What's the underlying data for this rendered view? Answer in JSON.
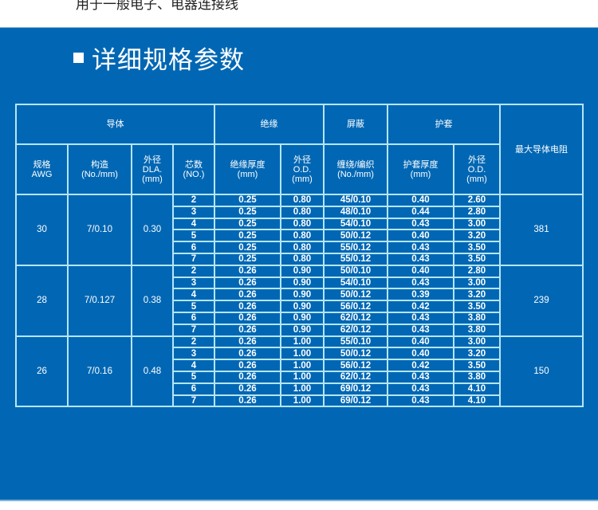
{
  "top_text": "用于一般电子、电器连接线",
  "section_title": "详细规格参数",
  "colors": {
    "panel_bg": "#0167b4",
    "grid": "#b4e6f7",
    "text": "#ffffff"
  },
  "table": {
    "group_headers": [
      "导体",
      "绝缘",
      "屏蔽",
      "护套",
      "最大导体电阻"
    ],
    "sub_headers": [
      [
        "规格",
        "AWG"
      ],
      [
        "构造",
        "(No./mm)"
      ],
      [
        "外径",
        "DLA.",
        "(mm)"
      ],
      [
        "芯数",
        "(NO.)"
      ],
      [
        "绝缘厚度",
        "(mm)"
      ],
      [
        "外径",
        "O.D.",
        "(mm)"
      ],
      [
        "缠绕/编织",
        "(No./mm)"
      ],
      [
        "护套厚度",
        "(mm)"
      ],
      [
        "外径",
        "O.D.",
        "(mm)"
      ]
    ],
    "groups": [
      {
        "awg": "30",
        "construction": "7/0.10",
        "od": "0.30",
        "resistance": "381",
        "rows": [
          [
            "2",
            "0.25",
            "0.80",
            "45/0.10",
            "0.40",
            "2.60"
          ],
          [
            "3",
            "0.25",
            "0.80",
            "48/0.10",
            "0.44",
            "2.80"
          ],
          [
            "4",
            "0.25",
            "0.80",
            "54/0.10",
            "0.43",
            "3.00"
          ],
          [
            "5",
            "0.25",
            "0.80",
            "50/0.12",
            "0.40",
            "3.20"
          ],
          [
            "6",
            "0.25",
            "0.80",
            "55/0.12",
            "0.43",
            "3.50"
          ],
          [
            "7",
            "0.25",
            "0.80",
            "55/0.12",
            "0.43",
            "3.50"
          ]
        ]
      },
      {
        "awg": "28",
        "construction": "7/0.127",
        "od": "0.38",
        "resistance": "239",
        "rows": [
          [
            "2",
            "0.26",
            "0.90",
            "50/0.10",
            "0.40",
            "2.80"
          ],
          [
            "3",
            "0.26",
            "0.90",
            "54/0.10",
            "0.43",
            "3.00"
          ],
          [
            "4",
            "0.26",
            "0.90",
            "50/0.12",
            "0.39",
            "3.20"
          ],
          [
            "5",
            "0.26",
            "0.90",
            "56/0.12",
            "0.42",
            "3.50"
          ],
          [
            "6",
            "0.26",
            "0.90",
            "62/0.12",
            "0.43",
            "3.80"
          ],
          [
            "7",
            "0.26",
            "0.90",
            "62/0.12",
            "0.43",
            "3.80"
          ]
        ]
      },
      {
        "awg": "26",
        "construction": "7/0.16",
        "od": "0.48",
        "resistance": "150",
        "rows": [
          [
            "2",
            "0.26",
            "1.00",
            "55/0.10",
            "0.40",
            "3.00"
          ],
          [
            "3",
            "0.26",
            "1.00",
            "50/0.12",
            "0.40",
            "3.20"
          ],
          [
            "4",
            "0.26",
            "1.00",
            "56/0.12",
            "0.42",
            "3.50"
          ],
          [
            "5",
            "0.26",
            "1.00",
            "62/0.12",
            "0.43",
            "3.80"
          ],
          [
            "6",
            "0.26",
            "1.00",
            "69/0.12",
            "0.43",
            "4.10"
          ],
          [
            "7",
            "0.26",
            "1.00",
            "69/0.12",
            "0.43",
            "4.10"
          ]
        ]
      }
    ]
  }
}
